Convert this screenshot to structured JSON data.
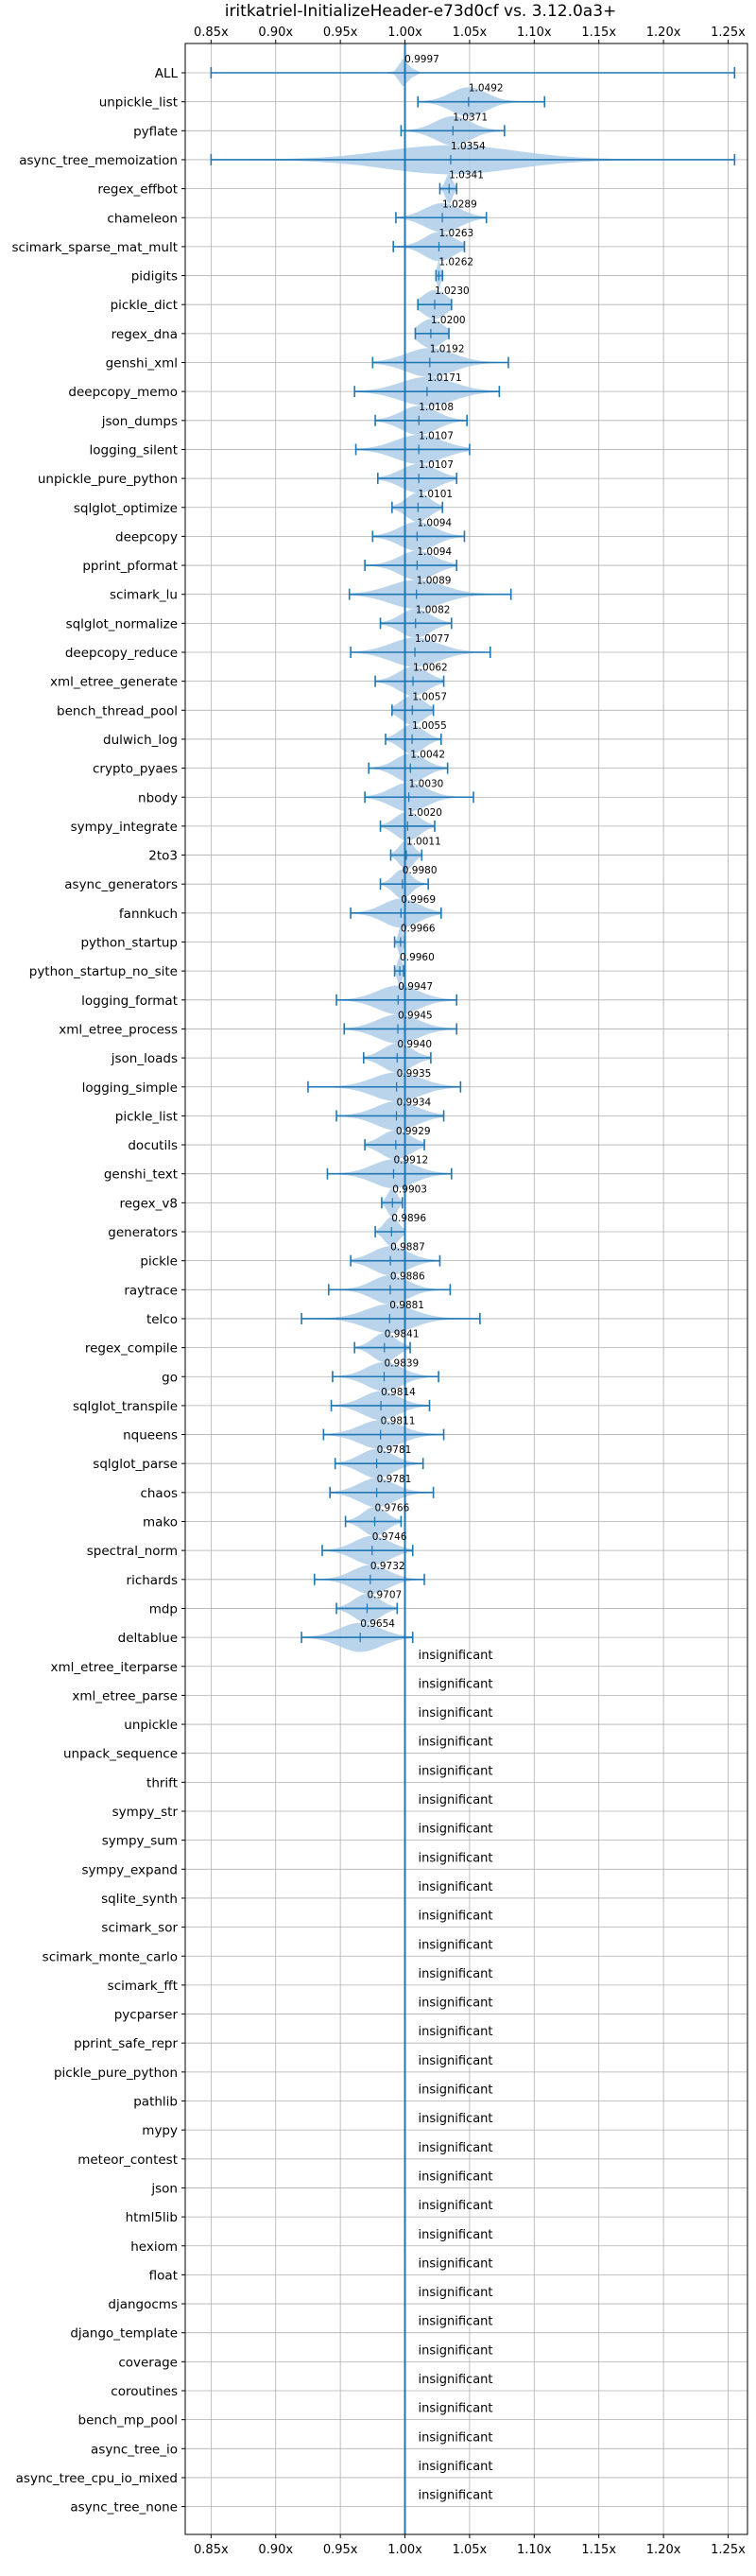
{
  "chart_data": {
    "type": "violin",
    "title": "iritkatriel-InitializeHeader-e73d0cf vs. 3.12.0a3+",
    "xlim": [
      0.83,
      1.265
    ],
    "x_ticks": [
      0.85,
      0.9,
      0.95,
      1.0,
      1.05,
      1.1,
      1.15,
      1.2,
      1.25
    ],
    "x_tick_labels": [
      "0.85x",
      "0.90x",
      "0.95x",
      "1.00x",
      "1.05x",
      "1.10x",
      "1.15x",
      "1.20x",
      "1.25x"
    ],
    "reference_line": 1.0,
    "violin_color": "#aecde8",
    "line_color": "#1f77b4",
    "insignificant_label": "insignificant",
    "benchmarks": [
      {
        "name": "ALL",
        "mean": 0.9997,
        "label": "0.9997",
        "min": 0.85,
        "max": 1.255,
        "spread": 0.008
      },
      {
        "name": "unpickle_list",
        "mean": 1.0492,
        "label": "1.0492",
        "min": 1.01,
        "max": 1.108,
        "spread": 0.03
      },
      {
        "name": "pyflate",
        "mean": 1.0371,
        "label": "1.0371",
        "min": 0.997,
        "max": 1.077,
        "spread": 0.03
      },
      {
        "name": "async_tree_memoization",
        "mean": 1.0354,
        "label": "1.0354",
        "min": 0.85,
        "max": 1.255,
        "spread": 0.11
      },
      {
        "name": "regex_effbot",
        "mean": 1.0341,
        "label": "1.0341",
        "min": 1.027,
        "max": 1.04,
        "spread": 0.006
      },
      {
        "name": "chameleon",
        "mean": 1.0289,
        "label": "1.0289",
        "min": 0.993,
        "max": 1.063,
        "spread": 0.03
      },
      {
        "name": "scimark_sparse_mat_mult",
        "mean": 1.0263,
        "label": "1.0263",
        "min": 0.991,
        "max": 1.046,
        "spread": 0.025
      },
      {
        "name": "pidigits",
        "mean": 1.0262,
        "label": "1.0262",
        "min": 1.024,
        "max": 1.029,
        "spread": 0.003
      },
      {
        "name": "pickle_dict",
        "mean": 1.023,
        "label": "1.0230",
        "min": 1.01,
        "max": 1.036,
        "spread": 0.02
      },
      {
        "name": "regex_dna",
        "mean": 1.02,
        "label": "1.0200",
        "min": 1.008,
        "max": 1.034,
        "spread": 0.02
      },
      {
        "name": "genshi_xml",
        "mean": 1.0192,
        "label": "1.0192",
        "min": 0.975,
        "max": 1.08,
        "spread": 0.04
      },
      {
        "name": "deepcopy_memo",
        "mean": 1.0171,
        "label": "1.0171",
        "min": 0.961,
        "max": 1.073,
        "spread": 0.045
      },
      {
        "name": "json_dumps",
        "mean": 1.0108,
        "label": "1.0108",
        "min": 0.977,
        "max": 1.048,
        "spread": 0.03
      },
      {
        "name": "logging_silent",
        "mean": 1.0107,
        "label": "1.0107",
        "min": 0.962,
        "max": 1.05,
        "spread": 0.04
      },
      {
        "name": "unpickle_pure_python",
        "mean": 1.0107,
        "label": "1.0107",
        "min": 0.979,
        "max": 1.04,
        "spread": 0.03
      },
      {
        "name": "sqlglot_optimize",
        "mean": 1.0101,
        "label": "1.0101",
        "min": 0.99,
        "max": 1.029,
        "spread": 0.02
      },
      {
        "name": "deepcopy",
        "mean": 1.0094,
        "label": "1.0094",
        "min": 0.975,
        "max": 1.046,
        "spread": 0.03
      },
      {
        "name": "pprint_pformat",
        "mean": 1.0094,
        "label": "1.0094",
        "min": 0.969,
        "max": 1.04,
        "spread": 0.03
      },
      {
        "name": "scimark_lu",
        "mean": 1.0089,
        "label": "1.0089",
        "min": 0.957,
        "max": 1.082,
        "spread": 0.045
      },
      {
        "name": "sqlglot_normalize",
        "mean": 1.0082,
        "label": "1.0082",
        "min": 0.981,
        "max": 1.036,
        "spread": 0.025
      },
      {
        "name": "deepcopy_reduce",
        "mean": 1.0077,
        "label": "1.0077",
        "min": 0.958,
        "max": 1.066,
        "spread": 0.04
      },
      {
        "name": "xml_etree_generate",
        "mean": 1.0062,
        "label": "1.0062",
        "min": 0.977,
        "max": 1.03,
        "spread": 0.025
      },
      {
        "name": "bench_thread_pool",
        "mean": 1.0057,
        "label": "1.0057",
        "min": 0.99,
        "max": 1.022,
        "spread": 0.02
      },
      {
        "name": "dulwich_log",
        "mean": 1.0055,
        "label": "1.0055",
        "min": 0.985,
        "max": 1.028,
        "spread": 0.02
      },
      {
        "name": "crypto_pyaes",
        "mean": 1.0042,
        "label": "1.0042",
        "min": 0.972,
        "max": 1.033,
        "spread": 0.025
      },
      {
        "name": "nbody",
        "mean": 1.003,
        "label": "1.0030",
        "min": 0.969,
        "max": 1.053,
        "spread": 0.03
      },
      {
        "name": "sympy_integrate",
        "mean": 1.002,
        "label": "1.0020",
        "min": 0.981,
        "max": 1.023,
        "spread": 0.02
      },
      {
        "name": "2to3",
        "mean": 1.0011,
        "label": "1.0011",
        "min": 0.989,
        "max": 1.013,
        "spread": 0.012
      },
      {
        "name": "async_generators",
        "mean": 0.998,
        "label": "0.9980",
        "min": 0.981,
        "max": 1.018,
        "spread": 0.015
      },
      {
        "name": "fannkuch",
        "mean": 0.9969,
        "label": "0.9969",
        "min": 0.958,
        "max": 1.028,
        "spread": 0.03
      },
      {
        "name": "python_startup",
        "mean": 0.9966,
        "label": "0.9966",
        "min": 0.992,
        "max": 1.0,
        "spread": 0.004
      },
      {
        "name": "python_startup_no_site",
        "mean": 0.996,
        "label": "0.9960",
        "min": 0.992,
        "max": 0.999,
        "spread": 0.004
      },
      {
        "name": "logging_format",
        "mean": 0.9947,
        "label": "0.9947",
        "min": 0.947,
        "max": 1.04,
        "spread": 0.035
      },
      {
        "name": "xml_etree_process",
        "mean": 0.9945,
        "label": "0.9945",
        "min": 0.953,
        "max": 1.04,
        "spread": 0.035
      },
      {
        "name": "json_loads",
        "mean": 0.994,
        "label": "0.9940",
        "min": 0.968,
        "max": 1.02,
        "spread": 0.025
      },
      {
        "name": "logging_simple",
        "mean": 0.9935,
        "label": "0.9935",
        "min": 0.925,
        "max": 1.043,
        "spread": 0.04
      },
      {
        "name": "pickle_list",
        "mean": 0.9934,
        "label": "0.9934",
        "min": 0.947,
        "max": 1.03,
        "spread": 0.035
      },
      {
        "name": "docutils",
        "mean": 0.9929,
        "label": "0.9929",
        "min": 0.969,
        "max": 1.015,
        "spread": 0.025
      },
      {
        "name": "genshi_text",
        "mean": 0.9912,
        "label": "0.9912",
        "min": 0.94,
        "max": 1.036,
        "spread": 0.035
      },
      {
        "name": "regex_v8",
        "mean": 0.9903,
        "label": "0.9903",
        "min": 0.982,
        "max": 0.998,
        "spread": 0.008
      },
      {
        "name": "generators",
        "mean": 0.9896,
        "label": "0.9896",
        "min": 0.977,
        "max": 1.0,
        "spread": 0.012
      },
      {
        "name": "pickle",
        "mean": 0.9887,
        "label": "0.9887",
        "min": 0.958,
        "max": 1.027,
        "spread": 0.03
      },
      {
        "name": "raytrace",
        "mean": 0.9886,
        "label": "0.9886",
        "min": 0.941,
        "max": 1.035,
        "spread": 0.03
      },
      {
        "name": "telco",
        "mean": 0.9881,
        "label": "0.9881",
        "min": 0.92,
        "max": 1.058,
        "spread": 0.04
      },
      {
        "name": "regex_compile",
        "mean": 0.9841,
        "label": "0.9841",
        "min": 0.961,
        "max": 1.004,
        "spread": 0.02
      },
      {
        "name": "go",
        "mean": 0.9839,
        "label": "0.9839",
        "min": 0.944,
        "max": 1.026,
        "spread": 0.03
      },
      {
        "name": "sqlglot_transpile",
        "mean": 0.9814,
        "label": "0.9814",
        "min": 0.943,
        "max": 1.019,
        "spread": 0.03
      },
      {
        "name": "nqueens",
        "mean": 0.9811,
        "label": "0.9811",
        "min": 0.937,
        "max": 1.03,
        "spread": 0.035
      },
      {
        "name": "sqlglot_parse",
        "mean": 0.9781,
        "label": "0.9781",
        "min": 0.946,
        "max": 1.014,
        "spread": 0.028
      },
      {
        "name": "chaos",
        "mean": 0.9781,
        "label": "0.9781",
        "min": 0.942,
        "max": 1.022,
        "spread": 0.03
      },
      {
        "name": "mako",
        "mean": 0.9766,
        "label": "0.9766",
        "min": 0.954,
        "max": 0.997,
        "spread": 0.02
      },
      {
        "name": "spectral_norm",
        "mean": 0.9746,
        "label": "0.9746",
        "min": 0.936,
        "max": 1.006,
        "spread": 0.03
      },
      {
        "name": "richards",
        "mean": 0.9732,
        "label": "0.9732",
        "min": 0.93,
        "max": 1.015,
        "spread": 0.03
      },
      {
        "name": "mdp",
        "mean": 0.9707,
        "label": "0.9707",
        "min": 0.947,
        "max": 0.994,
        "spread": 0.022
      },
      {
        "name": "deltablue",
        "mean": 0.9654,
        "label": "0.9654",
        "min": 0.92,
        "max": 1.006,
        "spread": 0.035
      },
      {
        "name": "xml_etree_iterparse",
        "insignificant": true
      },
      {
        "name": "xml_etree_parse",
        "insignificant": true
      },
      {
        "name": "unpickle",
        "insignificant": true
      },
      {
        "name": "unpack_sequence",
        "insignificant": true
      },
      {
        "name": "thrift",
        "insignificant": true
      },
      {
        "name": "sympy_str",
        "insignificant": true
      },
      {
        "name": "sympy_sum",
        "insignificant": true
      },
      {
        "name": "sympy_expand",
        "insignificant": true
      },
      {
        "name": "sqlite_synth",
        "insignificant": true
      },
      {
        "name": "scimark_sor",
        "insignificant": true
      },
      {
        "name": "scimark_monte_carlo",
        "insignificant": true
      },
      {
        "name": "scimark_fft",
        "insignificant": true
      },
      {
        "name": "pycparser",
        "insignificant": true
      },
      {
        "name": "pprint_safe_repr",
        "insignificant": true
      },
      {
        "name": "pickle_pure_python",
        "insignificant": true
      },
      {
        "name": "pathlib",
        "insignificant": true
      },
      {
        "name": "mypy",
        "insignificant": true
      },
      {
        "name": "meteor_contest",
        "insignificant": true
      },
      {
        "name": "json",
        "insignificant": true
      },
      {
        "name": "html5lib",
        "insignificant": true
      },
      {
        "name": "hexiom",
        "insignificant": true
      },
      {
        "name": "float",
        "insignificant": true
      },
      {
        "name": "djangocms",
        "insignificant": true
      },
      {
        "name": "django_template",
        "insignificant": true
      },
      {
        "name": "coverage",
        "insignificant": true
      },
      {
        "name": "coroutines",
        "insignificant": true
      },
      {
        "name": "bench_mp_pool",
        "insignificant": true
      },
      {
        "name": "async_tree_io",
        "insignificant": true
      },
      {
        "name": "async_tree_cpu_io_mixed",
        "insignificant": true
      },
      {
        "name": "async_tree_none",
        "insignificant": true
      }
    ]
  }
}
